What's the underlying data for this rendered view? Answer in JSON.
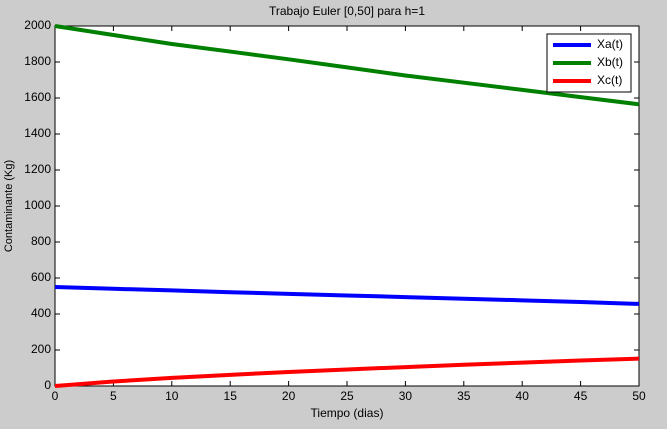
{
  "chart_data": {
    "type": "line",
    "title": "Trabajo Euler [0,50] para h=1",
    "xlabel": "Tiempo (dias)",
    "ylabel": "Contaminante (Kg)",
    "x": [
      0,
      5,
      10,
      15,
      20,
      25,
      30,
      35,
      40,
      45,
      50
    ],
    "series": [
      {
        "name": "Xa(t)",
        "color": "#0000ff",
        "values": [
          550,
          540,
          531,
          521,
          512,
          503,
          494,
          485,
          476,
          467,
          456
        ]
      },
      {
        "name": "Xb(t)",
        "color": "#008000",
        "values": [
          2000,
          1950,
          1900,
          1858,
          1815,
          1770,
          1725,
          1685,
          1645,
          1605,
          1565
        ]
      },
      {
        "name": "Xc(t)",
        "color": "#ff0000",
        "values": [
          0,
          25,
          45,
          62,
          78,
          92,
          105,
          118,
          130,
          142,
          152
        ]
      }
    ],
    "xlim": [
      0,
      50
    ],
    "xticks": [
      0,
      5,
      10,
      15,
      20,
      25,
      30,
      35,
      40,
      45,
      50
    ],
    "ylim": [
      0,
      2000
    ],
    "yticks": [
      0,
      200,
      400,
      600,
      800,
      1000,
      1200,
      1400,
      1600,
      1800,
      2000
    ],
    "grid": false,
    "legend": "top-right"
  }
}
